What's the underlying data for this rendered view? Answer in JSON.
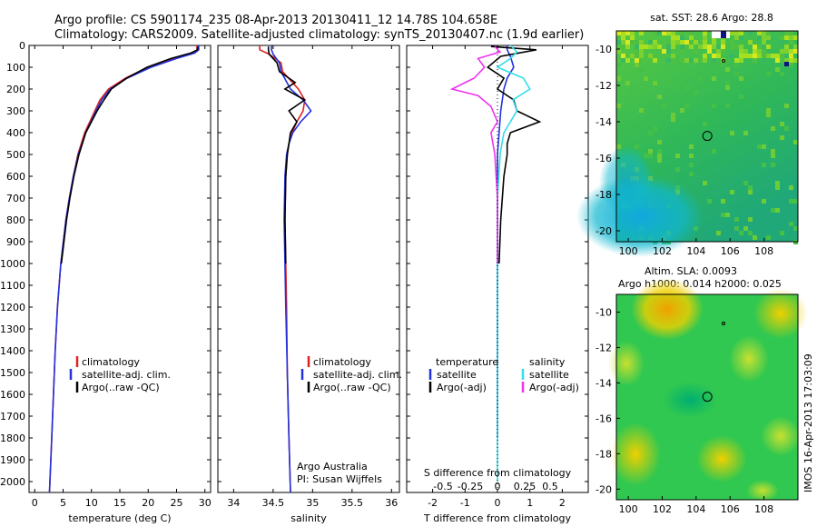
{
  "header": {
    "line1": "Argo profile: CS 5901174_235 08-Apr-2013 20130411_12 14.78S 104.658E",
    "line2": "Climatology: CARS2009. Satellite-adjusted climatology: synTS_20130407.nc (1.9d earlier)"
  },
  "colors": {
    "climatology": "#e02020",
    "satellite": "#2233dd",
    "argo": "#000000",
    "sal_satellite": "#33dde8",
    "sal_argo": "#ee33ee"
  },
  "depth_axis": {
    "ticks": [
      0,
      100,
      200,
      300,
      400,
      500,
      600,
      700,
      800,
      900,
      1000,
      1100,
      1200,
      1300,
      1400,
      1500,
      1600,
      1700,
      1800,
      1900,
      2000
    ],
    "range": [
      0,
      2050
    ]
  },
  "chart_data": [
    {
      "type": "line",
      "id": "temperature",
      "xlabel": "temperature (deg C)",
      "xlim": [
        -1,
        31
      ],
      "xticks": [
        0,
        5,
        10,
        15,
        20,
        25,
        30
      ],
      "legend": [
        "climatology",
        "satellite-adj. clim.",
        "Argo(..raw -QC)"
      ],
      "series": [
        {
          "name": "climatology",
          "depth": [
            0,
            20,
            35,
            60,
            100,
            150,
            200,
            250,
            300,
            400,
            500,
            600,
            700,
            800,
            1000,
            1200,
            1400,
            1600,
            1800,
            2050
          ],
          "values": [
            28.6,
            28.6,
            28,
            24.5,
            20,
            16,
            13,
            11.5,
            10.6,
            8.8,
            7.6,
            6.8,
            6.1,
            5.5,
            4.6,
            4.0,
            3.6,
            3.3,
            3.0,
            2.6
          ]
        },
        {
          "name": "satellite-adj. clim.",
          "depth": [
            0,
            20,
            35,
            60,
            100,
            150,
            200,
            250,
            300,
            400,
            500,
            600,
            700,
            800,
            1000,
            1200,
            1400,
            1600,
            1800,
            2050
          ],
          "values": [
            28.9,
            28.9,
            28.2,
            25,
            20.5,
            16.3,
            13.3,
            11.8,
            10.8,
            9.0,
            7.7,
            6.8,
            6.1,
            5.5,
            4.6,
            4.0,
            3.6,
            3.3,
            3.0,
            2.6
          ]
        },
        {
          "name": "Argo",
          "depth": [
            5,
            20,
            35,
            60,
            100,
            150,
            200,
            250,
            300,
            400,
            500,
            600,
            700,
            800,
            1000
          ],
          "values": [
            28.7,
            28.7,
            27.5,
            24,
            19.8,
            16.2,
            13.5,
            12.2,
            11,
            9,
            7.8,
            6.9,
            6.2,
            5.6,
            4.7
          ]
        }
      ]
    },
    {
      "type": "line",
      "id": "salinity",
      "xlabel": "salinity",
      "xlim": [
        33.8,
        36.1
      ],
      "xticks": [
        34,
        34.5,
        35,
        35.5,
        36
      ],
      "legend": [
        "climatology",
        "satellite-adj. clim.",
        "Argo(..raw -QC)"
      ],
      "annotations": [
        "Argo Australia",
        "PI: Susan Wijffels"
      ],
      "series": [
        {
          "name": "climatology",
          "depth": [
            0,
            20,
            40,
            80,
            120,
            200,
            250,
            300,
            350,
            400,
            450,
            500,
            600,
            800,
            1000,
            1200,
            1500,
            1800,
            2050
          ],
          "values": [
            34.33,
            34.33,
            34.45,
            34.6,
            34.62,
            34.82,
            34.9,
            34.88,
            34.8,
            34.74,
            34.7,
            34.68,
            34.66,
            34.65,
            34.66,
            34.67,
            34.68,
            34.7,
            34.72
          ]
        },
        {
          "name": "satellite-adj. clim.",
          "depth": [
            0,
            20,
            40,
            80,
            120,
            200,
            250,
            300,
            350,
            400,
            450,
            500,
            600,
            800,
            1000,
            1200,
            1500,
            1800,
            2050
          ],
          "values": [
            34.48,
            34.48,
            34.5,
            34.58,
            34.6,
            34.72,
            34.88,
            34.98,
            34.85,
            34.75,
            34.7,
            34.67,
            34.65,
            34.64,
            34.65,
            34.66,
            34.68,
            34.7,
            34.72
          ]
        },
        {
          "name": "Argo",
          "depth": [
            5,
            20,
            40,
            80,
            120,
            170,
            200,
            250,
            300,
            350,
            400,
            450,
            500,
            600,
            800,
            1000
          ],
          "values": [
            34.44,
            34.44,
            34.45,
            34.55,
            34.58,
            34.78,
            34.65,
            34.9,
            34.7,
            34.8,
            34.72,
            34.7,
            34.68,
            34.66,
            34.65,
            34.66
          ]
        }
      ]
    },
    {
      "type": "line",
      "id": "differences",
      "xlabel_top": "S difference from climatology",
      "xlabel": "T difference from climatology",
      "xlim": [
        -2.8,
        2.8
      ],
      "xticks": [
        -2,
        -1,
        0,
        1,
        2
      ],
      "top_ticks": [
        "-0.5",
        "-0.25",
        "0",
        "0.25",
        "0.5"
      ],
      "legend_headers": [
        "temperature",
        "salinity"
      ],
      "legend": [
        "satellite",
        "Argo(-adj)",
        "satellite",
        "Argo(-adj)"
      ],
      "series": [
        {
          "name": "T satellite",
          "depth": [
            0,
            20,
            50,
            100,
            150,
            200,
            300,
            400,
            500,
            600,
            700,
            800,
            1000,
            1500,
            1800
          ],
          "values": [
            0.3,
            0.3,
            0.4,
            0.5,
            0.3,
            0.2,
            0.1,
            0.05,
            0,
            0,
            0,
            0,
            0,
            0,
            0
          ]
        },
        {
          "name": "T Argo(-adj)",
          "depth": [
            5,
            20,
            50,
            100,
            150,
            200,
            250,
            300,
            350,
            400,
            450,
            500,
            600,
            800,
            1000
          ],
          "values": [
            -0.2,
            1.2,
            0.1,
            -0.3,
            0.2,
            0,
            0.5,
            0.6,
            1.3,
            0.4,
            0.3,
            0.3,
            0.2,
            0.1,
            0.05
          ]
        },
        {
          "name": "S satellite",
          "depth": [
            0,
            30,
            60,
            100,
            150,
            200,
            250,
            300,
            350,
            400,
            500,
            700,
            1000,
            1500,
            2000
          ],
          "values": [
            0.1,
            0.15,
            0.1,
            0.0,
            0.2,
            0.25,
            0.12,
            0.15,
            0.1,
            0.05,
            0.02,
            0.0,
            0,
            0,
            0
          ]
        },
        {
          "name": "S Argo(-adj)",
          "depth": [
            5,
            30,
            60,
            100,
            150,
            200,
            230,
            280,
            350,
            400,
            500,
            700,
            1000
          ],
          "values": [
            -0.02,
            0.02,
            -0.15,
            -0.1,
            -0.18,
            -0.35,
            -0.15,
            -0.05,
            0,
            -0.05,
            -0.02,
            0,
            0
          ]
        }
      ]
    }
  ],
  "maps": [
    {
      "id": "sst_map",
      "title": "sat. SST: 28.6 Argo: 28.8",
      "xticks": [
        "100",
        "102",
        "104",
        "106",
        "108"
      ],
      "yticks": [
        "-10",
        "-12",
        "-14",
        "-16",
        "-18",
        "-20"
      ],
      "marker": {
        "lon": 104.66,
        "lat": -14.78
      }
    },
    {
      "id": "sla_map",
      "title_line1": "Altim. SLA: 0.0093",
      "title_line2": "Argo h1000: 0.014 h2000: 0.025",
      "xticks": [
        "100",
        "102",
        "104",
        "106",
        "108"
      ],
      "yticks": [
        "-10",
        "-12",
        "-14",
        "-16",
        "-18",
        "-20"
      ],
      "marker": {
        "lon": 104.66,
        "lat": -14.78
      }
    }
  ],
  "footer_stamp": "IMOS 16-Apr-2013 17:03:09"
}
